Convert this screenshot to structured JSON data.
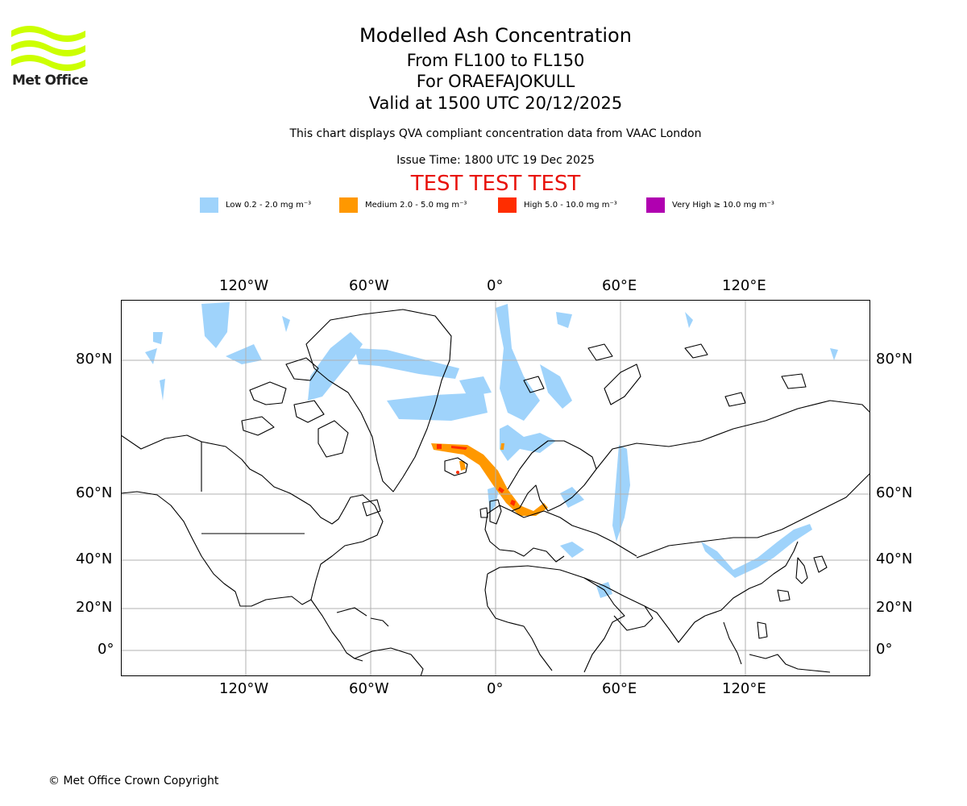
{
  "header": {
    "title": "Modelled Ash Concentration",
    "levels": "From FL100 to FL150",
    "volcano": "For ORAEFAJOKULL",
    "valid": "Valid at 1500 UTC 20/12/2025",
    "description": "This chart displays QVA compliant concentration data from VAAC London",
    "issue_time": "Issue Time: 1800 UTC 19 Dec 2025",
    "test_banner": "TEST TEST TEST"
  },
  "logo": {
    "text": "Met Office",
    "color": "#ccff00"
  },
  "legend": [
    {
      "label": "Low 0.2 - 2.0 mg m⁻³",
      "color": "#9fd3fb"
    },
    {
      "label": "Medium 2.0 - 5.0 mg m⁻³",
      "color": "#ff9800"
    },
    {
      "label": "High 5.0 - 10.0 mg m⁻³",
      "color": "#ff2d00"
    },
    {
      "label": "Very High  ≥  10.0 mg m⁻³",
      "color": "#b000b0"
    }
  ],
  "map": {
    "lon_ticks": [
      "120°W",
      "60°W",
      "0°",
      "60°E",
      "120°E"
    ],
    "lat_ticks": [
      "80°N",
      "60°N",
      "40°N",
      "20°N",
      "0°"
    ],
    "colors": {
      "low": "#9fd3fb",
      "medium": "#ff9800",
      "high": "#ff2d00",
      "grid": "#b0b0b0"
    }
  },
  "footer": {
    "copyright": "© Met Office Crown Copyright"
  }
}
